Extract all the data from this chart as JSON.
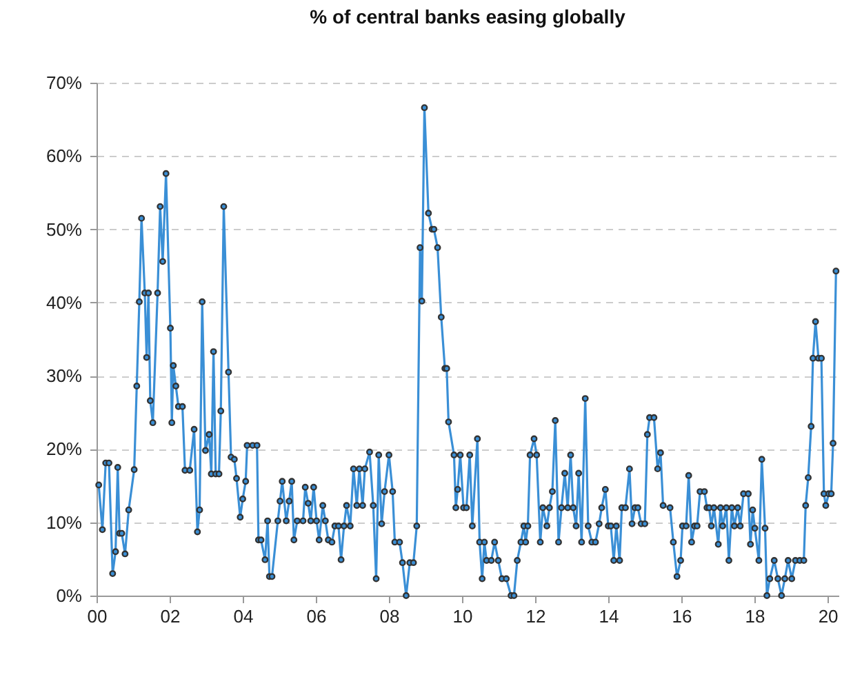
{
  "chart_data": {
    "type": "line",
    "title": "% of central banks easing globally",
    "x": [
      2000.06,
      2000.16,
      2000.25,
      2000.34,
      2000.44,
      2000.52,
      2000.58,
      2000.63,
      2000.69,
      2000.78,
      2000.88,
      2001.03,
      2001.1,
      2001.17,
      2001.23,
      2001.32,
      2001.37,
      2001.42,
      2001.47,
      2001.54,
      2001.67,
      2001.74,
      2001.81,
      2001.9,
      2002.02,
      2002.06,
      2002.1,
      2002.17,
      2002.24,
      2002.35,
      2002.42,
      2002.55,
      2002.67,
      2002.76,
      2002.82,
      2002.89,
      2002.98,
      2003.08,
      2003.14,
      2003.2,
      2003.26,
      2003.35,
      2003.4,
      2003.48,
      2003.61,
      2003.68,
      2003.77,
      2003.83,
      2003.93,
      2004.0,
      2004.08,
      2004.12,
      2004.27,
      2004.39,
      2004.43,
      2004.5,
      2004.61,
      2004.68,
      2004.73,
      2004.8,
      2004.96,
      2005.02,
      2005.08,
      2005.19,
      2005.27,
      2005.34,
      2005.4,
      2005.49,
      2005.65,
      2005.71,
      2005.79,
      2005.86,
      2005.94,
      2006.02,
      2006.09,
      2006.19,
      2006.26,
      2006.34,
      2006.44,
      2006.52,
      2006.62,
      2006.69,
      2006.77,
      2006.84,
      2006.94,
      2007.03,
      2007.12,
      2007.19,
      2007.28,
      2007.34,
      2007.47,
      2007.57,
      2007.65,
      2007.72,
      2007.8,
      2007.88,
      2008.0,
      2008.1,
      2008.16,
      2008.29,
      2008.37,
      2008.47,
      2008.57,
      2008.67,
      2008.76,
      2008.85,
      2008.9,
      2008.97,
      2009.08,
      2009.18,
      2009.23,
      2009.33,
      2009.43,
      2009.53,
      2009.58,
      2009.63,
      2009.78,
      2009.83,
      2009.88,
      2009.95,
      2010.04,
      2010.12,
      2010.21,
      2010.28,
      2010.42,
      2010.48,
      2010.55,
      2010.61,
      2010.67,
      2010.8,
      2010.89,
      2010.99,
      2011.09,
      2011.21,
      2011.34,
      2011.42,
      2011.51,
      2011.61,
      2011.69,
      2011.74,
      2011.8,
      2011.86,
      2011.97,
      2012.04,
      2012.14,
      2012.21,
      2012.32,
      2012.39,
      2012.47,
      2012.55,
      2012.64,
      2012.72,
      2012.81,
      2012.89,
      2012.97,
      2013.04,
      2013.12,
      2013.19,
      2013.27,
      2013.37,
      2013.45,
      2013.55,
      2013.65,
      2013.75,
      2013.82,
      2013.92,
      2014.0,
      2014.07,
      2014.15,
      2014.22,
      2014.31,
      2014.37,
      2014.47,
      2014.58,
      2014.65,
      2014.73,
      2014.81,
      2014.9,
      2015.0,
      2015.07,
      2015.13,
      2015.25,
      2015.35,
      2015.43,
      2015.5,
      2015.69,
      2015.78,
      2015.88,
      2015.98,
      2016.03,
      2016.13,
      2016.2,
      2016.28,
      2016.36,
      2016.43,
      2016.51,
      2016.63,
      2016.7,
      2016.76,
      2016.82,
      2016.89,
      2017.01,
      2017.07,
      2017.13,
      2017.23,
      2017.3,
      2017.38,
      2017.45,
      2017.54,
      2017.61,
      2017.7,
      2017.83,
      2017.89,
      2017.95,
      2018.01,
      2018.12,
      2018.2,
      2018.29,
      2018.34,
      2018.42,
      2018.54,
      2018.64,
      2018.74,
      2018.83,
      2018.92,
      2019.02,
      2019.12,
      2019.24,
      2019.35,
      2019.4,
      2019.47,
      2019.55,
      2019.6,
      2019.67,
      2019.75,
      2019.83,
      2019.9,
      2019.95,
      2020.03,
      2020.1,
      2020.15,
      2020.23
    ],
    "series": [
      {
        "color": "#3a8fd6",
        "values": [
          15.1,
          9.0,
          18.1,
          18.1,
          3.0,
          6.0,
          17.5,
          8.5,
          8.5,
          5.7,
          11.7,
          17.2,
          28.6,
          40.1,
          51.5,
          41.3,
          32.5,
          41.3,
          26.6,
          23.6,
          41.3,
          53.1,
          45.6,
          57.6,
          36.5,
          23.6,
          31.4,
          28.6,
          25.8,
          25.8,
          17.1,
          17.1,
          22.7,
          8.7,
          11.7,
          40.1,
          19.8,
          22.0,
          16.6,
          33.3,
          16.6,
          16.6,
          25.2,
          53.1,
          30.5,
          18.9,
          18.6,
          16.0,
          10.7,
          13.2,
          15.6,
          20.5,
          20.5,
          20.5,
          7.6,
          7.6,
          4.9,
          10.2,
          2.6,
          2.6,
          10.2,
          12.9,
          15.6,
          10.2,
          12.9,
          15.6,
          7.6,
          10.2,
          10.2,
          14.8,
          12.6,
          10.2,
          14.8,
          10.2,
          7.6,
          12.3,
          10.2,
          7.6,
          7.3,
          9.5,
          9.5,
          4.9,
          9.5,
          12.3,
          9.5,
          17.3,
          12.3,
          17.3,
          12.3,
          17.3,
          19.6,
          12.3,
          2.3,
          19.2,
          9.8,
          14.2,
          19.2,
          14.2,
          7.3,
          7.3,
          4.5,
          0,
          4.5,
          4.5,
          9.5,
          47.5,
          40.2,
          66.6,
          52.2,
          50.0,
          50.0,
          47.5,
          38.0,
          31.0,
          31.0,
          23.7,
          19.2,
          12.0,
          14.5,
          19.2,
          12.0,
          12.0,
          19.2,
          9.5,
          21.4,
          7.3,
          2.3,
          7.3,
          4.8,
          4.8,
          7.3,
          4.8,
          2.3,
          2.3,
          0,
          0,
          4.8,
          7.3,
          9.5,
          7.3,
          9.5,
          19.2,
          21.4,
          19.2,
          7.3,
          12.0,
          9.5,
          12.0,
          14.2,
          23.9,
          7.3,
          12.0,
          16.7,
          12.0,
          19.2,
          12.0,
          9.5,
          16.7,
          7.3,
          26.9,
          9.5,
          7.3,
          7.3,
          9.8,
          12.0,
          14.5,
          9.5,
          9.5,
          4.8,
          9.5,
          4.8,
          12.0,
          12.0,
          17.3,
          9.8,
          12.0,
          12.0,
          9.8,
          9.8,
          22.0,
          24.3,
          24.3,
          17.3,
          19.5,
          12.3,
          12.0,
          7.3,
          2.6,
          4.8,
          9.5,
          9.5,
          16.4,
          7.3,
          9.5,
          9.5,
          14.2,
          14.2,
          12.0,
          12.0,
          9.5,
          12.0,
          7.0,
          12.0,
          9.5,
          12.0,
          4.8,
          12.0,
          9.5,
          12.0,
          9.5,
          13.9,
          13.9,
          7.0,
          11.7,
          9.2,
          4.8,
          18.6,
          9.2,
          0,
          2.3,
          4.8,
          2.3,
          0,
          2.3,
          4.8,
          2.3,
          4.8,
          4.8,
          4.8,
          12.3,
          16.1,
          23.1,
          32.4,
          37.4,
          32.4,
          32.4,
          13.9,
          12.3,
          13.9,
          13.9,
          20.8,
          44.3
        ]
      }
    ],
    "xlim": [
      2000,
      2020.3
    ],
    "xticks": [
      {
        "value": 2000,
        "label": "00"
      },
      {
        "value": 2002,
        "label": "02"
      },
      {
        "value": 2004,
        "label": "04"
      },
      {
        "value": 2006,
        "label": "06"
      },
      {
        "value": 2008,
        "label": "08"
      },
      {
        "value": 2010,
        "label": "10"
      },
      {
        "value": 2012,
        "label": "12"
      },
      {
        "value": 2014,
        "label": "14"
      },
      {
        "value": 2016,
        "label": "16"
      },
      {
        "value": 2018,
        "label": "18"
      },
      {
        "value": 2020,
        "label": "20"
      }
    ],
    "ylim": [
      0,
      70
    ],
    "yticks": [
      {
        "value": 0,
        "label": "0%"
      },
      {
        "value": 10,
        "label": "10%"
      },
      {
        "value": 20,
        "label": "20%"
      },
      {
        "value": 30,
        "label": "30%"
      },
      {
        "value": 40,
        "label": "40%"
      },
      {
        "value": 50,
        "label": "50%"
      },
      {
        "value": 60,
        "label": "60%"
      },
      {
        "value": 70,
        "label": "70%"
      }
    ],
    "grid": "y",
    "marker": "circle",
    "line_style": "solid"
  }
}
